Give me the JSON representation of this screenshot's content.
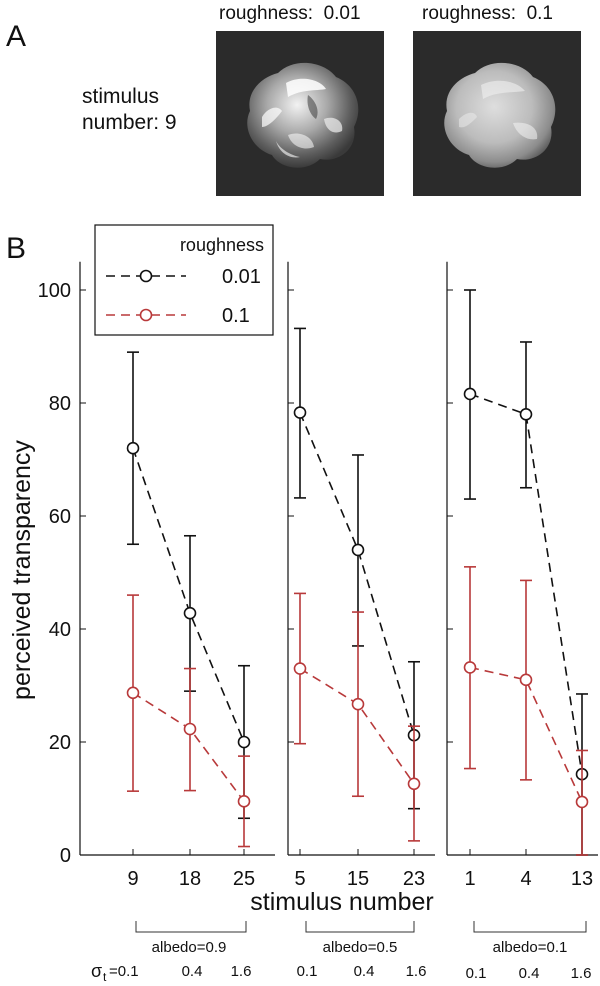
{
  "panel_a": {
    "letter": "A",
    "stimulus_label_line1": "stimulus",
    "stimulus_label_line2": "number: 9",
    "images": [
      {
        "title": "roughness:  0.01",
        "glossiness": "glossy"
      },
      {
        "title": "roughness:  0.1",
        "glossiness": "matte"
      }
    ]
  },
  "panel_b": {
    "letter": "B",
    "albedo_groups": [
      {
        "label": "albedo=0.9",
        "sigma_prefix": "σ",
        "sigma_sub": "t",
        "sigma_values": [
          "=0.1",
          "0.4",
          "1.6"
        ]
      },
      {
        "label": "albedo=0.5",
        "sigma_values": [
          "0.1",
          "0.4",
          "1.6"
        ]
      },
      {
        "label": "albedo=0.1",
        "sigma_values": [
          "0.1",
          "0.4",
          "1.6"
        ]
      }
    ]
  },
  "chart_data": {
    "type": "line",
    "ylabel": "perceived transparency",
    "xlabel": "stimulus number",
    "ylim": [
      0,
      105
    ],
    "yticks": [
      0,
      20,
      40,
      60,
      80,
      100
    ],
    "legend_title": "roughness",
    "legend_position": "top-left",
    "groups": [
      {
        "categories": [
          "9",
          "18",
          "25"
        ]
      },
      {
        "categories": [
          "5",
          "15",
          "23"
        ]
      },
      {
        "categories": [
          "1",
          "4",
          "13"
        ]
      }
    ],
    "series": [
      {
        "name": "0.01",
        "color": "#111111",
        "values": [
          [
            72,
            42.8,
            20
          ],
          [
            78.3,
            54,
            21.2
          ],
          [
            81.6,
            78,
            14.3
          ]
        ],
        "error_low": [
          [
            55,
            29,
            6.5
          ],
          [
            63.2,
            37,
            8.2
          ],
          [
            63,
            65,
            0
          ]
        ],
        "error_high": [
          [
            89,
            56.5,
            33.5
          ],
          [
            93.2,
            70.8,
            34.2
          ],
          [
            100,
            90.8,
            28.5
          ]
        ]
      },
      {
        "name": "0.1",
        "color": "#b8393a",
        "values": [
          [
            28.7,
            22.3,
            9.5
          ],
          [
            33,
            26.7,
            12.6
          ],
          [
            33.2,
            31,
            9.4
          ]
        ],
        "error_low": [
          [
            11.3,
            11.4,
            1.5
          ],
          [
            19.7,
            10.4,
            2.5
          ],
          [
            15.3,
            13.3,
            0
          ]
        ],
        "error_high": [
          [
            46,
            33,
            17.5
          ],
          [
            46.3,
            43,
            22.8
          ],
          [
            51,
            48.6,
            18.5
          ]
        ]
      }
    ]
  }
}
